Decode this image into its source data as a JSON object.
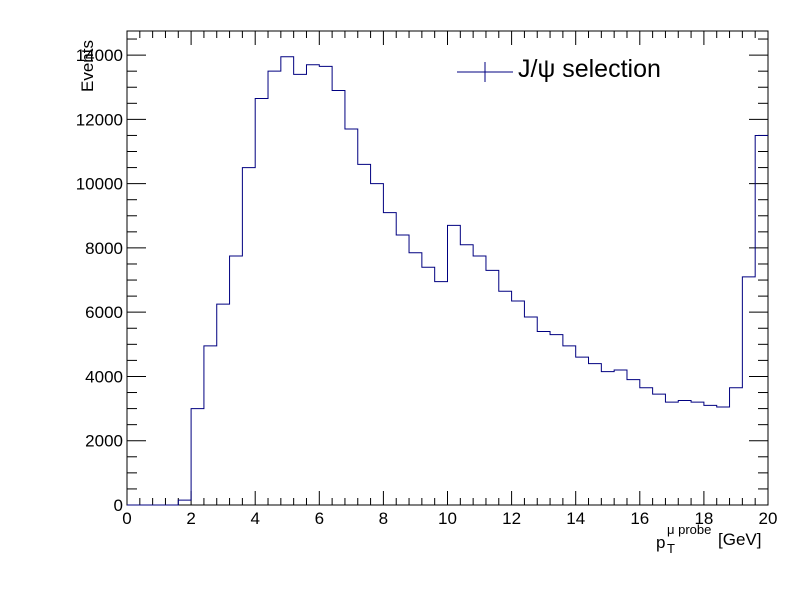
{
  "chart_data": {
    "type": "histogram",
    "xlabel": {
      "base": "p",
      "sub": "T",
      "sup": "μ probe",
      "unit": "[GeV]"
    },
    "ylabel": "Events",
    "xlim": [
      0,
      20
    ],
    "ylim": [
      0,
      14000
    ],
    "x_ticks": [
      "0",
      "2",
      "4",
      "6",
      "8",
      "10",
      "12",
      "14",
      "16",
      "18",
      "20"
    ],
    "y_ticks": [
      "0",
      "2000",
      "4000",
      "6000",
      "8000",
      "10000",
      "12000",
      "14000"
    ],
    "bin_width": 0.4,
    "bin_start": 0,
    "series": [
      {
        "name": "J/ψ selection",
        "color": "#000080",
        "values": [
          0,
          0,
          0,
          0,
          150,
          3000,
          4950,
          6250,
          7750,
          10500,
          12650,
          13500,
          13950,
          13400,
          13700,
          13650,
          12900,
          11700,
          10600,
          10000,
          9100,
          8400,
          7850,
          7400,
          6950,
          8700,
          8100,
          7750,
          7300,
          6650,
          6350,
          5850,
          5400,
          5300,
          4950,
          4600,
          4400,
          4150,
          4200,
          3900,
          3650,
          3450,
          3200,
          3250,
          3200,
          3100,
          3050,
          3650,
          7100,
          11500
        ]
      }
    ],
    "legend": {
      "position": "top-right"
    },
    "grid": false
  }
}
